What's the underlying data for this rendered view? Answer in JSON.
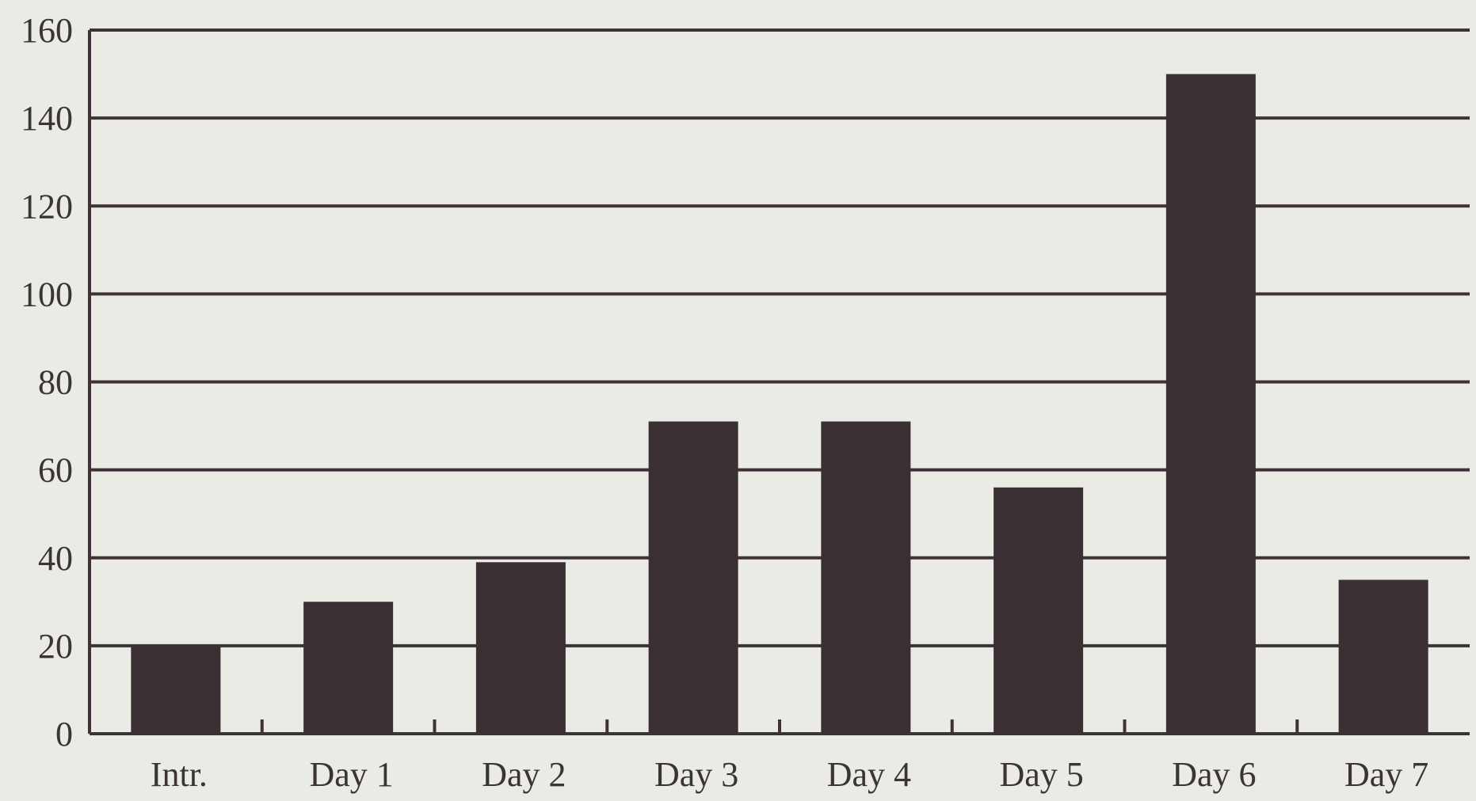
{
  "colors": {
    "background": "#ebebe6",
    "gridline": "#3e3238",
    "bar": "#3a2f33",
    "text": "#3b3336"
  },
  "chart_data": {
    "type": "bar",
    "title": "",
    "xlabel": "",
    "ylabel": "",
    "categories": [
      "Intr.",
      "Day 1",
      "Day 2",
      "Day 3",
      "Day 4",
      "Day 5",
      "Day 6",
      "Day 7"
    ],
    "values": [
      20,
      30,
      39,
      71,
      71,
      56,
      150,
      35
    ],
    "ylim": [
      0,
      160
    ],
    "yticks": [
      "0",
      "20",
      "40",
      "60",
      "80",
      "100",
      "120",
      "140",
      "160"
    ],
    "grid": true,
    "legend": "none"
  }
}
